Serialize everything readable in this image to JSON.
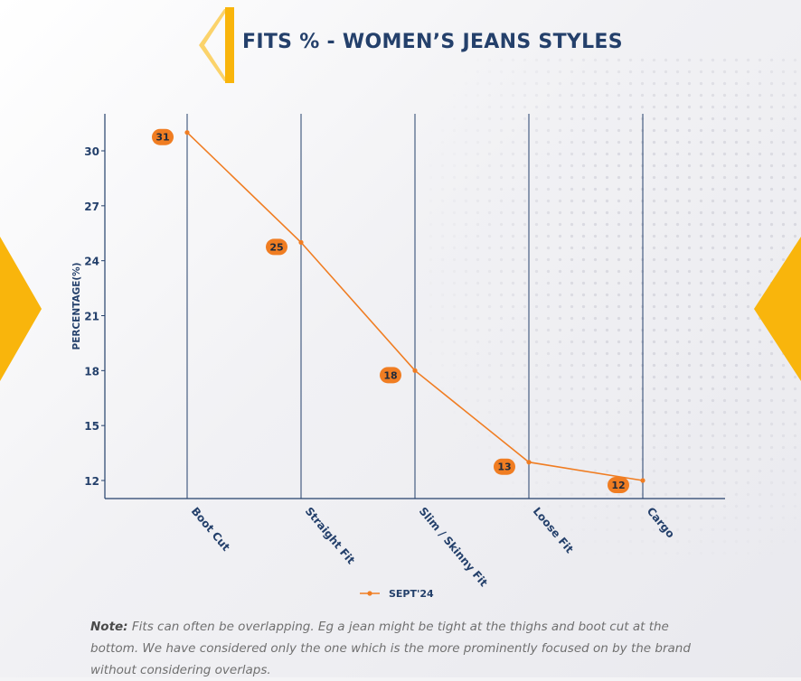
{
  "title": "FITS % - WOMEN’S JEANS STYLES",
  "note": {
    "label": "Note:",
    "text": " Fits can often be overlapping. Eg a jean might be tight at the thighs and boot cut at the bottom. We have considered only the one which is the more prominently focused on by the brand without considering overlaps."
  },
  "colors": {
    "accent": "#f9b50c",
    "line": "#f07d22",
    "axis": "#24406b",
    "title": "#24406b"
  },
  "chart_data": {
    "type": "line",
    "title": "",
    "xlabel": "",
    "ylabel": "PERCENTAGE(%)",
    "categories": [
      "Boot Cut",
      "Straight Fit",
      "Slim / Skinny Fit",
      "Loose Fit",
      "Cargo"
    ],
    "series": [
      {
        "name": "SEPT'24",
        "values": [
          31,
          25,
          18,
          13,
          12
        ]
      }
    ],
    "yticks": [
      12,
      15,
      18,
      21,
      24,
      27,
      30
    ],
    "ylim": [
      11,
      32
    ],
    "grid": "vertical category lines",
    "legend": "bottom-center",
    "data_labels": [
      "31",
      "25",
      "18",
      "13",
      "12"
    ]
  }
}
